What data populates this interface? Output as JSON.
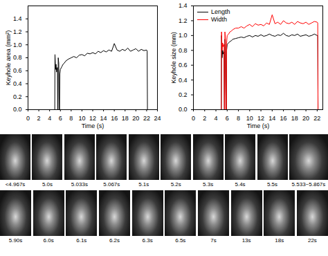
{
  "chart_data": [
    {
      "type": "line",
      "x_label": "Time (s)",
      "y_label": "Keyhole area (mm²)",
      "x": [
        0,
        4.96,
        5.0,
        5.1,
        5.2,
        5.3,
        5.45,
        5.5,
        5.55,
        5.6,
        5.7,
        5.8,
        5.85,
        5.9,
        6.0,
        6.25,
        6.5,
        6.75,
        7,
        7.5,
        8,
        8.5,
        9,
        9.5,
        10,
        10.5,
        11,
        11.5,
        12,
        12.5,
        13,
        13.5,
        14,
        14.5,
        15,
        15.5,
        16,
        16.5,
        17,
        17.5,
        18,
        18.5,
        19,
        19.5,
        20,
        20.5,
        21,
        21.5,
        22,
        22.1,
        22.15
      ],
      "values": [
        0,
        0,
        0.85,
        0.62,
        0.7,
        0.58,
        0.65,
        0,
        0,
        0.8,
        0.72,
        0,
        0,
        0.55,
        0.62,
        0.66,
        0.7,
        0.72,
        0.75,
        0.78,
        0.8,
        0.82,
        0.8,
        0.84,
        0.85,
        0.83,
        0.87,
        0.86,
        0.88,
        0.86,
        0.9,
        0.88,
        0.91,
        0.89,
        0.92,
        0.9,
        1.02,
        0.92,
        0.9,
        0.93,
        0.91,
        0.95,
        0.9,
        0.92,
        0.94,
        0.9,
        0.93,
        0.91,
        0.92,
        0.9,
        0
      ],
      "color": "#000000",
      "xlim": [
        0,
        24
      ],
      "xticks": [
        0,
        2,
        4,
        6,
        8,
        10,
        12,
        14,
        16,
        18,
        20,
        22,
        24
      ],
      "ylim": [
        0,
        1.6
      ],
      "yticks": [
        {
          "value": 0,
          "label": "0.0"
        },
        0.2,
        0.4,
        0.6,
        0.8,
        {
          "value": 1,
          "label": "1.0"
        },
        1.2,
        1.4
      ],
      "grid": false
    },
    {
      "type": "line",
      "x_label": "Time (s)",
      "y_label": "Keyhole size (mm)",
      "x": [
        0,
        4.96,
        5.0,
        5.1,
        5.2,
        5.3,
        5.45,
        5.5,
        5.55,
        5.6,
        5.7,
        5.8,
        5.85,
        5.9,
        6.0,
        6.25,
        6.5,
        6.75,
        7,
        7.5,
        8,
        8.5,
        9,
        9.5,
        10,
        10.5,
        11,
        11.5,
        12,
        12.5,
        13,
        13.5,
        14,
        14.5,
        15,
        15.5,
        16,
        16.5,
        17,
        17.5,
        18,
        18.5,
        19,
        19.5,
        20,
        20.5,
        21,
        21.5,
        22,
        22.1,
        22.15
      ],
      "series": [
        {
          "name": "Length",
          "color": "#000000",
          "values": [
            0,
            0,
            1.0,
            0.7,
            0.8,
            0.75,
            0.78,
            0,
            0,
            0.95,
            0.85,
            0,
            0,
            0.8,
            0.88,
            0.9,
            0.92,
            0.93,
            0.95,
            0.96,
            0.97,
            0.98,
            0.97,
            0.99,
            1.0,
            0.98,
            1.0,
            0.99,
            1.01,
            0.99,
            1.0,
            1.02,
            1.0,
            0.99,
            1.01,
            1.0,
            1.03,
            1.0,
            0.99,
            1.01,
            1.0,
            1.02,
            0.99,
            1.0,
            1.01,
            0.99,
            1.0,
            1.02,
            1.0,
            1.0,
            0
          ]
        },
        {
          "name": "Width",
          "color": "#ff0000",
          "values": [
            0,
            0,
            1.05,
            0.8,
            0.9,
            0.85,
            0.88,
            0,
            0,
            1.05,
            0.95,
            0,
            0,
            0.9,
            1.0,
            1.02,
            1.05,
            1.06,
            1.08,
            1.1,
            1.1,
            1.12,
            1.1,
            1.13,
            1.15,
            1.12,
            1.16,
            1.14,
            1.15,
            1.13,
            1.17,
            1.15,
            1.28,
            1.16,
            1.18,
            1.15,
            1.2,
            1.17,
            1.16,
            1.18,
            1.15,
            1.19,
            1.17,
            1.16,
            1.18,
            1.15,
            1.17,
            1.19,
            1.18,
            1.17,
            0
          ]
        }
      ],
      "xlim": [
        0,
        23
      ],
      "xticks": [
        0,
        2,
        4,
        6,
        8,
        10,
        12,
        14,
        16,
        18,
        20,
        22
      ],
      "ylim": [
        0,
        1.4
      ],
      "yticks": [
        {
          "value": 0,
          "label": "0.0"
        },
        0.2,
        0.4,
        0.6,
        0.8,
        {
          "value": 1,
          "label": "1.0"
        },
        1.2,
        1.4
      ],
      "legend": "top-left",
      "grid": false
    }
  ],
  "image_sequence": {
    "rows": [
      [
        "<4.967s",
        "5.0s",
        "5.033s",
        "5.067s",
        "5.1s",
        "5.2s",
        "5.3s",
        "5.4s",
        "5.5s",
        "5.533~5.867s"
      ],
      [
        "5.90s",
        "6.0s",
        "6.1s",
        "6.2s",
        "6.3s",
        "6.5s",
        "7s",
        "13s",
        "18s",
        "22s"
      ]
    ]
  }
}
